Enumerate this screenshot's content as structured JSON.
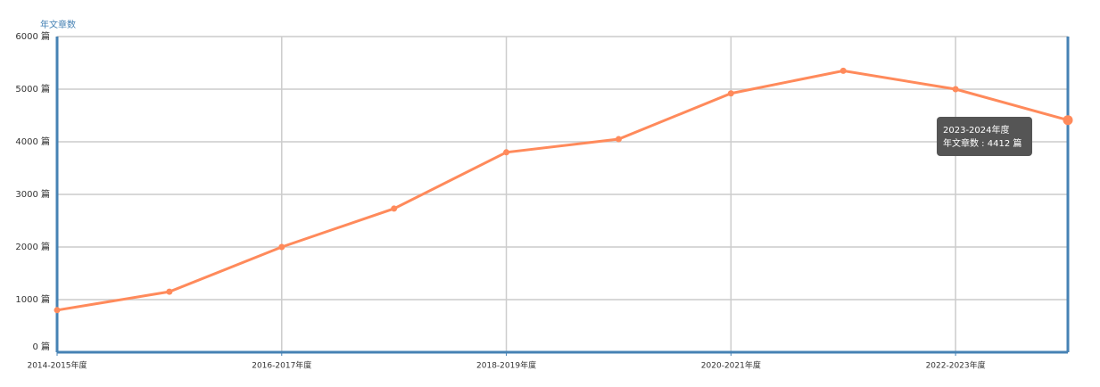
{
  "chart_data": {
    "type": "line",
    "y_label": "年文章数",
    "categories": [
      "2014-2015年度",
      null,
      "2016-2017年度",
      null,
      "2018-2019年度",
      null,
      "2020-2021年度",
      null,
      "2022-2023年度",
      null
    ],
    "values": [
      800,
      1150,
      2000,
      2730,
      3800,
      4050,
      4920,
      5350,
      5000,
      4412
    ],
    "color": "#ff8a5b",
    "ylim": [
      0,
      6000
    ],
    "yticks": [
      {
        "value": 0,
        "label": "0 篇"
      },
      {
        "value": 1000,
        "label": "1000 篇"
      },
      {
        "value": 2000,
        "label": "2000 篇"
      },
      {
        "value": 3000,
        "label": "3000 篇"
      },
      {
        "value": 4000,
        "label": "4000 篇"
      },
      {
        "value": 5000,
        "label": "5000 篇"
      },
      {
        "value": 6000,
        "label": "6000 篇"
      }
    ],
    "grid": true,
    "tooltip": {
      "title": "2023-2024年度",
      "text": "年文章数 : 4412 篇"
    }
  }
}
